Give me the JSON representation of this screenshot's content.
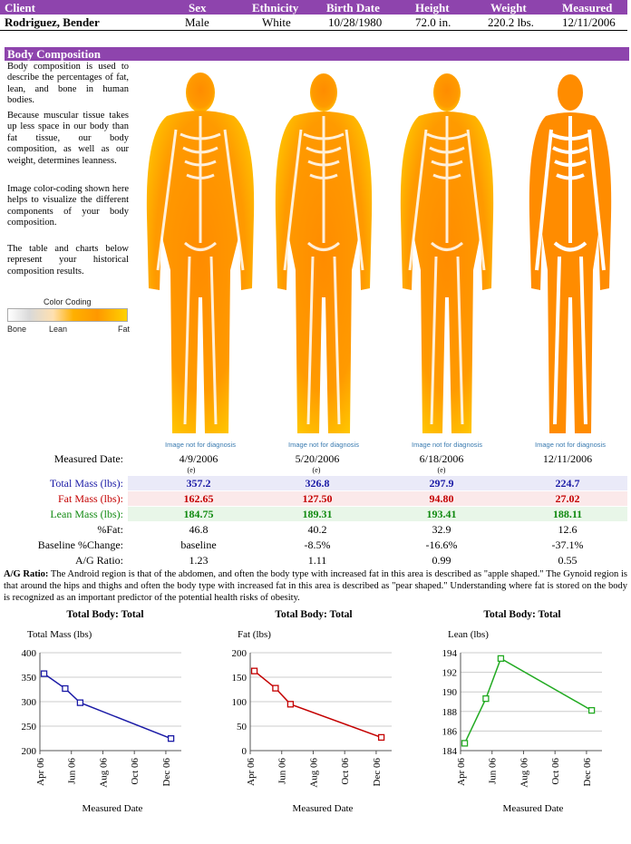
{
  "header": {
    "labels": [
      "Client",
      "Sex",
      "Ethnicity",
      "Birth Date",
      "Height",
      "Weight",
      "Measured"
    ],
    "values": [
      "Rodriguez, Bender",
      "Male",
      "White",
      "10/28/1980",
      "72.0 in.",
      "220.2 lbs.",
      "12/11/2006"
    ]
  },
  "section_title": "Body Composition",
  "intro": [
    "Body composition is used to describe the percentages of fat, lean, and bone in human bodies.",
    "Because muscular tissue takes up less space in our body than fat tissue, our body composition, as well as our weight, determines leanness.",
    "Image color-coding shown here helps to visualize the different components of your body composition.",
    "The table and charts below represent your historical composition results."
  ],
  "color_coding": {
    "title": "Color Coding",
    "ticks": [
      "Bone",
      "Lean",
      "Fat"
    ]
  },
  "scans": [
    {
      "caption": "Image not for diagnosis"
    },
    {
      "caption": "Image not for diagnosis"
    },
    {
      "caption": "Image not for diagnosis"
    },
    {
      "caption": "Image not for diagnosis"
    }
  ],
  "table": {
    "measured_label": "Measured Date:",
    "dates": [
      "4/9/2006",
      "5/20/2006",
      "6/18/2006",
      "12/11/2006"
    ],
    "date_marks": [
      "(e)",
      "(e)",
      "(e)",
      ""
    ],
    "rows": [
      {
        "label": "Total Mass (lbs):",
        "values": [
          "357.2",
          "326.8",
          "297.9",
          "224.7"
        ],
        "color": "#1a1aa6",
        "bg": "#eaeaf8",
        "bold": true
      },
      {
        "label": "Fat Mass (lbs):",
        "values": [
          "162.65",
          "127.50",
          "94.80",
          "27.02"
        ],
        "color": "#c40000",
        "bg": "#fbe9ea",
        "bold": true
      },
      {
        "label": "Lean Mass (lbs):",
        "values": [
          "184.75",
          "189.31",
          "193.41",
          "188.11"
        ],
        "color": "#118a11",
        "bg": "#e8f6e8",
        "bold": true
      },
      {
        "label": "%Fat:",
        "values": [
          "46.8",
          "40.2",
          "32.9",
          "12.6"
        ],
        "color": "#000",
        "bg": "#fff",
        "bold": false
      },
      {
        "label": "Baseline %Change:",
        "values": [
          "baseline",
          "-8.5%",
          "-16.6%",
          "-37.1%"
        ],
        "color": "#000",
        "bg": "#fff",
        "bold": false
      },
      {
        "label": "A/G Ratio:",
        "values": [
          "1.23",
          "1.11",
          "0.99",
          "0.55"
        ],
        "color": "#000",
        "bg": "#fff",
        "bold": false
      }
    ]
  },
  "ag_note": {
    "label": "A/G Ratio:",
    "text": " The Android region is that of the abdomen, and often the body type with increased fat in this area is described as \"apple shaped.\" The Gynoid region is that around the hips and thighs and often the body type with increased fat in this area is described as \"pear shaped.\" Understanding where fat is stored on the body is recognized as an important predictor of the potential health risks of obesity."
  },
  "colors": {
    "header_bg": "#8e44ad",
    "total": "#1a1aa6",
    "fat": "#c40000",
    "lean": "#22aa22"
  },
  "chart_data": [
    {
      "type": "line",
      "title": "Total Body: Total",
      "ylabel": "Total Mass (lbs)",
      "xlabel": "Measured Date",
      "x": [
        "2006-04-09",
        "2006-05-20",
        "2006-06-18",
        "2006-12-11"
      ],
      "values": [
        357.2,
        326.8,
        297.9,
        224.7
      ],
      "ylim": [
        200,
        400
      ],
      "yticks": [
        200,
        250,
        300,
        350,
        400
      ],
      "xticks": [
        "Apr 06",
        "Jun 06",
        "Aug 06",
        "Oct 06",
        "Dec 06"
      ],
      "color": "#1a1aa6",
      "grid": true
    },
    {
      "type": "line",
      "title": "Total Body: Total",
      "ylabel": "Fat (lbs)",
      "xlabel": "Measured Date",
      "x": [
        "2006-04-09",
        "2006-05-20",
        "2006-06-18",
        "2006-12-11"
      ],
      "values": [
        162.65,
        127.5,
        94.8,
        27.02
      ],
      "ylim": [
        0,
        200
      ],
      "yticks": [
        0,
        50,
        100,
        150,
        200
      ],
      "xticks": [
        "Apr 06",
        "Jun 06",
        "Aug 06",
        "Oct 06",
        "Dec 06"
      ],
      "color": "#c40000",
      "grid": true
    },
    {
      "type": "line",
      "title": "Total Body: Total",
      "ylabel": "Lean (lbs)",
      "xlabel": "Measured Date",
      "x": [
        "2006-04-09",
        "2006-05-20",
        "2006-06-18",
        "2006-12-11"
      ],
      "values": [
        184.75,
        189.31,
        193.41,
        188.11
      ],
      "ylim": [
        184,
        194
      ],
      "yticks": [
        184,
        186,
        188,
        190,
        192,
        194
      ],
      "xticks": [
        "Apr 06",
        "Jun 06",
        "Aug 06",
        "Oct 06",
        "Dec 06"
      ],
      "color": "#22aa22",
      "grid": true
    }
  ]
}
